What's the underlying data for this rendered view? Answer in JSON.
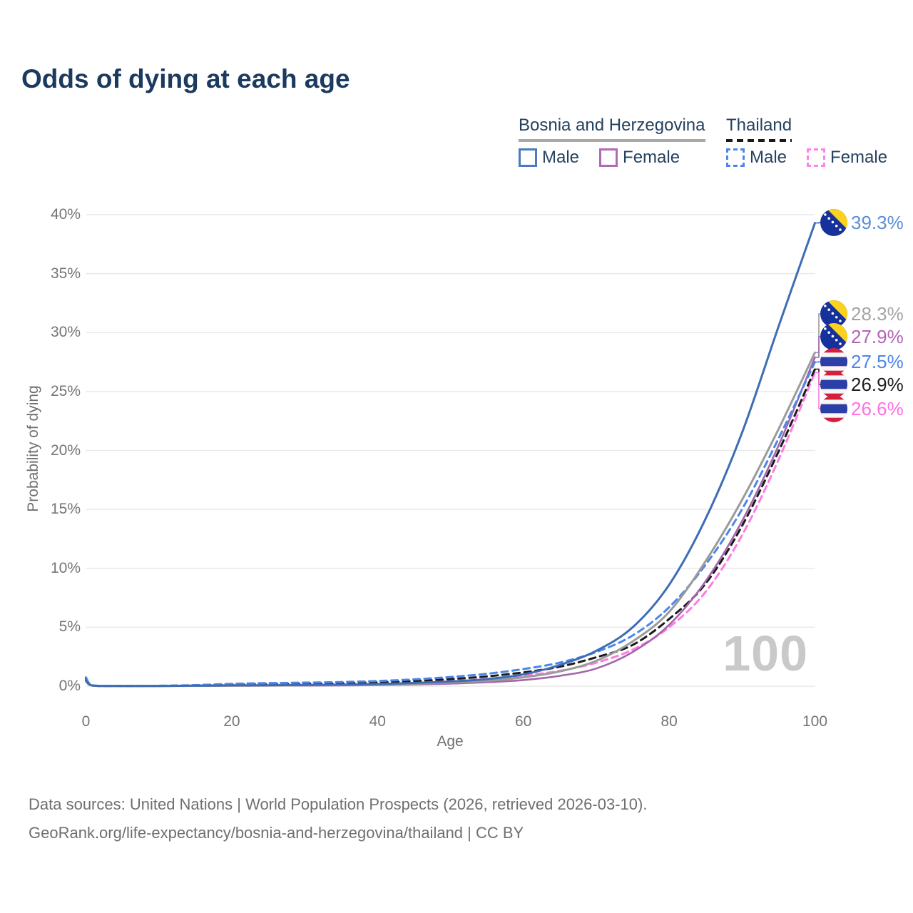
{
  "title": "Odds of dying at each age",
  "watermark": "100",
  "legend": {
    "groups": [
      {
        "country": "Bosnia and Herzegovina",
        "line_style": "solid",
        "underline_color": "#a8a8a8",
        "items": [
          {
            "label": "Male",
            "color": "#4b79c2",
            "style": "solid"
          },
          {
            "label": "Female",
            "color": "#b069b3",
            "style": "solid"
          }
        ]
      },
      {
        "country": "Thailand",
        "line_style": "dashed",
        "underline_color": "#1a1a1a",
        "items": [
          {
            "label": "Male",
            "color": "#4d86ea",
            "style": "dashed"
          },
          {
            "label": "Female",
            "color": "#ff80e8",
            "style": "dashed"
          }
        ]
      }
    ]
  },
  "sources": {
    "line1": "Data sources: United Nations | World Population Prospects (2026, retrieved 2026-03-10).",
    "line2": "GeoRank.org/life-expectancy/bosnia-and-herzegovina/thailand | CC BY"
  },
  "chart_data": {
    "type": "line",
    "title": "Odds of dying at each age",
    "xlabel": "Age",
    "ylabel": "Probability of dying",
    "xlim": [
      0,
      100
    ],
    "ylim": [
      0,
      40
    ],
    "grid": "horizontal",
    "legend_position": "top-right",
    "x_ticks": [
      {
        "value": 0,
        "label": "0"
      },
      {
        "value": 20,
        "label": "20"
      },
      {
        "value": 40,
        "label": "40"
      },
      {
        "value": 60,
        "label": "60"
      },
      {
        "value": 80,
        "label": "80"
      },
      {
        "value": 100,
        "label": "100"
      }
    ],
    "y_ticks": [
      {
        "value": 0,
        "label": "0%"
      },
      {
        "value": 5,
        "label": "5%"
      },
      {
        "value": 10,
        "label": "10%"
      },
      {
        "value": 15,
        "label": "15%"
      },
      {
        "value": 20,
        "label": "20%"
      },
      {
        "value": 25,
        "label": "25%"
      },
      {
        "value": 30,
        "label": "30%"
      },
      {
        "value": 35,
        "label": "35%"
      },
      {
        "value": 40,
        "label": "40%"
      }
    ],
    "x": [
      0,
      1,
      5,
      10,
      15,
      20,
      25,
      30,
      35,
      40,
      45,
      50,
      55,
      60,
      65,
      70,
      75,
      80,
      85,
      90,
      95,
      100
    ],
    "series": [
      {
        "id": "bosnia-male",
        "country": "Bosnia and Herzegovina",
        "sex": "Male",
        "flag": "bosnia-and-herzegovina",
        "style": "solid",
        "color": "#3e6db4",
        "end_label": "39.3%",
        "label_color": "#5b8ed6",
        "values": [
          0.5,
          0.04,
          0.02,
          0.02,
          0.04,
          0.07,
          0.08,
          0.1,
          0.13,
          0.18,
          0.27,
          0.4,
          0.6,
          1.0,
          1.8,
          3.0,
          5.0,
          8.6,
          14.2,
          21.5,
          30.5,
          39.3
        ]
      },
      {
        "id": "bosnia-total",
        "country": "Bosnia and Herzegovina",
        "sex": "",
        "flag": "bosnia-and-herzegovina",
        "style": "solid",
        "color": "#9b9b9b",
        "end_label": "28.3%",
        "label_color": "#a3a3a3",
        "values": [
          0.45,
          0.035,
          0.015,
          0.015,
          0.03,
          0.05,
          0.06,
          0.07,
          0.1,
          0.13,
          0.2,
          0.31,
          0.46,
          0.75,
          1.25,
          2.15,
          3.8,
          6.3,
          10.6,
          15.8,
          21.8,
          28.3
        ]
      },
      {
        "id": "bosnia-female",
        "country": "Bosnia and Herzegovina",
        "sex": "Female",
        "flag": "bosnia-and-herzegovina",
        "style": "solid",
        "color": "#a365ab",
        "end_label": "27.9%",
        "label_color": "#b164b4",
        "values": [
          0.4,
          0.03,
          0.012,
          0.012,
          0.02,
          0.03,
          0.04,
          0.05,
          0.06,
          0.09,
          0.14,
          0.22,
          0.33,
          0.52,
          0.88,
          1.5,
          2.9,
          5.2,
          8.9,
          14.0,
          20.4,
          27.9
        ]
      },
      {
        "id": "thailand-male",
        "country": "Thailand",
        "sex": "Male",
        "flag": "thailand",
        "style": "dashed",
        "color": "#4d86ea",
        "end_label": "27.5%",
        "label_color": "#4d86ea",
        "values": [
          0.75,
          0.06,
          0.03,
          0.035,
          0.09,
          0.2,
          0.26,
          0.3,
          0.35,
          0.44,
          0.58,
          0.78,
          1.05,
          1.45,
          2.0,
          2.9,
          4.3,
          6.7,
          10.3,
          15.0,
          21.0,
          27.5
        ]
      },
      {
        "id": "thailand-total",
        "country": "Thailand",
        "sex": "",
        "flag": "thailand",
        "style": "dashed",
        "color": "#1b1b1b",
        "end_label": "26.9%",
        "label_color": "#1d1d1d",
        "values": [
          0.65,
          0.05,
          0.025,
          0.03,
          0.07,
          0.14,
          0.19,
          0.22,
          0.26,
          0.33,
          0.44,
          0.6,
          0.83,
          1.17,
          1.65,
          2.45,
          3.5,
          5.7,
          8.7,
          13.6,
          19.9,
          26.9
        ]
      },
      {
        "id": "thailand-female",
        "country": "Thailand",
        "sex": "Female",
        "flag": "thailand",
        "style": "dashed",
        "color": "#ff7ae3",
        "end_label": "26.6%",
        "label_color": "#ff70e5",
        "values": [
          0.55,
          0.045,
          0.02,
          0.025,
          0.05,
          0.08,
          0.12,
          0.14,
          0.18,
          0.23,
          0.31,
          0.44,
          0.62,
          0.9,
          1.3,
          2.0,
          3.1,
          5.0,
          8.0,
          12.8,
          19.2,
          26.6
        ]
      }
    ]
  }
}
